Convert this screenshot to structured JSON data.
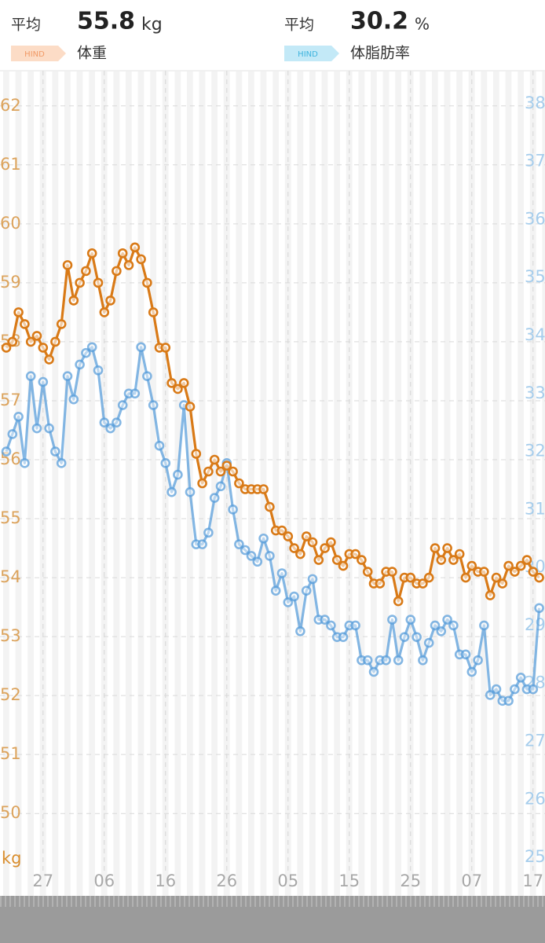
{
  "header": {
    "weight": {
      "label": "平均",
      "value": 55.8,
      "unit": "kg",
      "tag": "HIND"
    },
    "fat": {
      "label": "平均",
      "value": 30.2,
      "unit": "%",
      "tag": "HIND"
    }
  },
  "chart_data": {
    "type": "line",
    "categories": [
      null,
      null,
      null,
      null,
      null,
      null,
      "27",
      null,
      null,
      null,
      null,
      null,
      null,
      null,
      null,
      null,
      "06",
      null,
      null,
      null,
      null,
      null,
      null,
      null,
      null,
      null,
      "16",
      null,
      null,
      null,
      null,
      null,
      null,
      null,
      null,
      null,
      "26",
      null,
      null,
      null,
      null,
      null,
      null,
      null,
      null,
      null,
      "05",
      null,
      null,
      null,
      null,
      null,
      null,
      null,
      null,
      null,
      "15",
      null,
      null,
      null,
      null,
      null,
      null,
      null,
      null,
      null,
      "25",
      null,
      null,
      null,
      null,
      null,
      null,
      null,
      null,
      null,
      "07",
      null,
      null,
      null,
      null,
      null,
      null,
      null,
      null,
      null,
      "17",
      null
    ],
    "ylim": [
      49.03,
      62.53
    ],
    "yticks": [
      50,
      51,
      52,
      53,
      54,
      55,
      56,
      57,
      58,
      59,
      60,
      61,
      62
    ],
    "y_unit": "kg",
    "y2lim": [
      24.77,
      38.5
    ],
    "y2ticks": [
      25,
      26,
      27,
      28,
      29,
      30,
      31,
      32,
      33,
      34,
      35,
      36,
      37,
      38
    ],
    "grid": true,
    "series": [
      {
        "name": "体重",
        "color": "#d97a17",
        "values": [
          57.9,
          58.0,
          58.5,
          58.3,
          58.0,
          58.1,
          57.9,
          57.7,
          58.0,
          58.3,
          59.3,
          58.7,
          59.0,
          59.2,
          59.5,
          59.0,
          58.5,
          58.7,
          59.2,
          59.5,
          59.3,
          59.6,
          59.4,
          59.0,
          58.5,
          57.9,
          57.9,
          57.3,
          57.2,
          57.3,
          56.9,
          56.1,
          55.6,
          55.8,
          56.0,
          55.8,
          55.9,
          55.8,
          55.6,
          55.5,
          55.5,
          55.5,
          55.5,
          55.2,
          54.8,
          54.8,
          54.7,
          54.5,
          54.4,
          54.7,
          54.6,
          54.3,
          54.5,
          54.6,
          54.3,
          54.2,
          54.4,
          54.4,
          54.3,
          54.1,
          53.9,
          53.9,
          54.1,
          54.1,
          53.6,
          54.0,
          54.0,
          53.9,
          53.9,
          54.0,
          54.5,
          54.3,
          54.5,
          54.3,
          54.4,
          54.0,
          54.2,
          54.1,
          54.1,
          53.7,
          54.0,
          53.9,
          54.2,
          54.1,
          54.2,
          54.3,
          54.1,
          54.0
        ]
      },
      {
        "name": "体脂肪率",
        "color": "#5b9fdb",
        "axis": "y2",
        "values": [
          32.0,
          32.3,
          32.6,
          31.8,
          33.3,
          32.4,
          33.2,
          32.4,
          32.0,
          31.8,
          33.3,
          32.9,
          33.5,
          33.7,
          33.8,
          33.4,
          32.5,
          32.4,
          32.5,
          32.8,
          33.0,
          33.0,
          33.8,
          33.3,
          32.8,
          32.1,
          31.8,
          31.3,
          31.6,
          32.8,
          31.3,
          30.4,
          30.4,
          30.6,
          31.2,
          31.4,
          31.8,
          31.0,
          30.4,
          30.3,
          30.2,
          30.1,
          30.5,
          30.2,
          29.6,
          29.9,
          29.4,
          29.5,
          28.9,
          29.6,
          29.8,
          29.1,
          29.1,
          29.0,
          28.8,
          28.8,
          29.0,
          29.0,
          28.4,
          28.4,
          28.2,
          28.4,
          28.4,
          29.1,
          28.4,
          28.8,
          29.1,
          28.8,
          28.4,
          28.7,
          29.0,
          28.9,
          29.1,
          29.0,
          28.5,
          28.5,
          28.2,
          28.4,
          29.0,
          27.8,
          27.9,
          27.7,
          27.7,
          27.9,
          28.1,
          27.9,
          27.9,
          29.3
        ]
      }
    ]
  }
}
